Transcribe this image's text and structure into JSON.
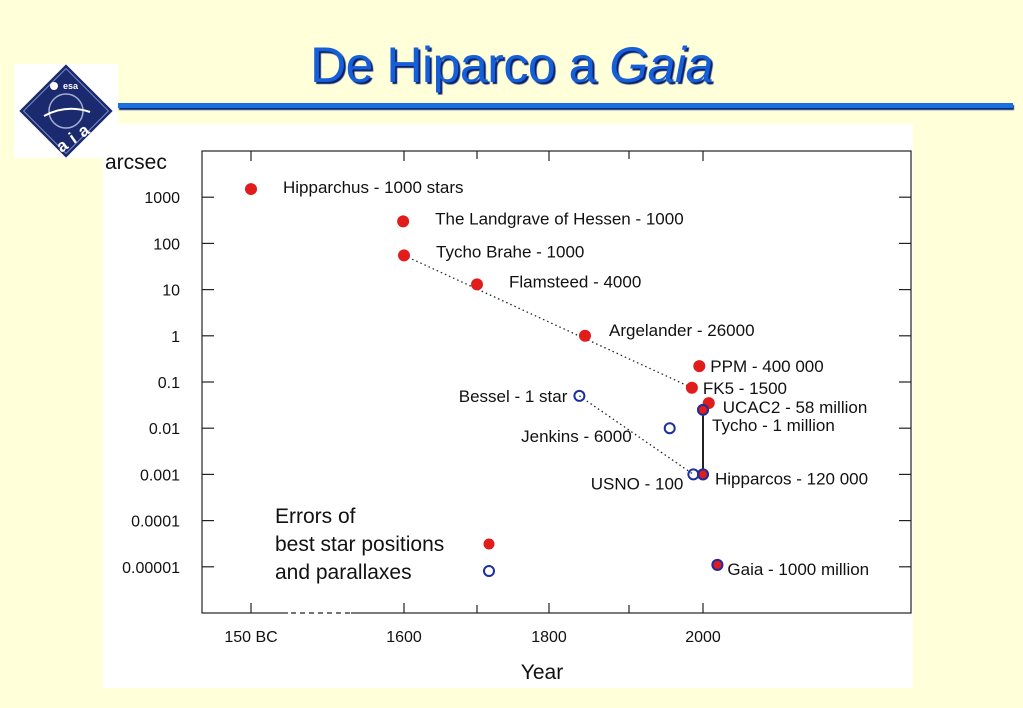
{
  "slide": {
    "title_prefix": "De Hiparco a ",
    "title_italic": "Gaia",
    "logo_text": "Gaia",
    "logo_agency": "esa"
  },
  "chart_data": {
    "type": "scatter",
    "ylabel": "arcsec",
    "xlabel": "Year",
    "y_scale": "log",
    "ylim": [
      1e-06,
      10000
    ],
    "xlim": [
      -150,
      2150
    ],
    "x_ticks": [
      {
        "value": -150,
        "label": "150 BC"
      },
      {
        "value": 1600,
        "label": "1600"
      },
      {
        "value": 1800,
        "label": "1800"
      },
      {
        "value": 2000,
        "label": "2000"
      }
    ],
    "x_minor_ticks": [
      1700,
      1900
    ],
    "y_ticks": [
      {
        "value": 1000,
        "label": "1000"
      },
      {
        "value": 100,
        "label": "100"
      },
      {
        "value": 10,
        "label": "10"
      },
      {
        "value": 1,
        "label": "1"
      },
      {
        "value": 0.1,
        "label": "0.1"
      },
      {
        "value": 0.01,
        "label": "0.01"
      },
      {
        "value": 0.001,
        "label": "0.001"
      },
      {
        "value": 0.0001,
        "label": "0.0001"
      },
      {
        "value": 1e-05,
        "label": "0.00001"
      }
    ],
    "grid": false,
    "series": [
      {
        "name": "best star positions",
        "marker": "filled",
        "color": "#e21b1b",
        "points": [
          {
            "x": -150,
            "y": 1500,
            "label": "Hipparchus  - 1000 stars"
          },
          {
            "x": 1590,
            "y": 300,
            "label": "The Landgrave of Hessen  -  1000"
          },
          {
            "x": 1600,
            "y": 55,
            "label": "Tycho Brahe  -  1000"
          },
          {
            "x": 1700,
            "y": 13,
            "label": "Flamsteed  -  4000"
          },
          {
            "x": 1845,
            "y": 1,
            "label": "Argelander - 26000"
          },
          {
            "x": 1995,
            "y": 0.22,
            "label": "PPM - 400 000"
          },
          {
            "x": 1985,
            "y": 0.075,
            "label": "FK5 - 1500"
          },
          {
            "x": 2008,
            "y": 0.035,
            "label": "UCAC2 - 58 million"
          },
          {
            "x": 2000,
            "y": 0.025,
            "label": "Tycho - 1 million"
          },
          {
            "x": 2000,
            "y": 0.001,
            "label": "Hipparcos - 120 000"
          },
          {
            "x": 2020,
            "y": 1.1e-05,
            "label": "Gaia - 1000 million"
          }
        ]
      },
      {
        "name": "parallaxes",
        "marker": "open",
        "color": "#1a2fa0",
        "points": [
          {
            "x": 1838,
            "y": 0.05,
            "label": "Bessel - 1 star"
          },
          {
            "x": 1955,
            "y": 0.01,
            "label": "Jenkins - 6000"
          },
          {
            "x": 1987,
            "y": 0.001,
            "label": "USNO - 100"
          },
          {
            "x": 2000,
            "y": 0.025,
            "label": ""
          },
          {
            "x": 2000,
            "y": 0.001,
            "label": ""
          },
          {
            "x": 2020,
            "y": 1.1e-05,
            "label": ""
          }
        ]
      }
    ],
    "trend_lines": [
      {
        "style": "dotted",
        "points": [
          [
            1600,
            55
          ],
          [
            1985,
            0.075
          ]
        ]
      },
      {
        "style": "dotted",
        "points": [
          [
            1838,
            0.05
          ],
          [
            1987,
            0.001
          ]
        ]
      },
      {
        "style": "solid",
        "points": [
          [
            2000,
            0.025
          ],
          [
            2000,
            0.001
          ]
        ]
      }
    ],
    "legend": {
      "placement": "bottom-left",
      "lines": [
        "Errors of",
        "best star positions",
        "and parallaxes"
      ]
    }
  }
}
